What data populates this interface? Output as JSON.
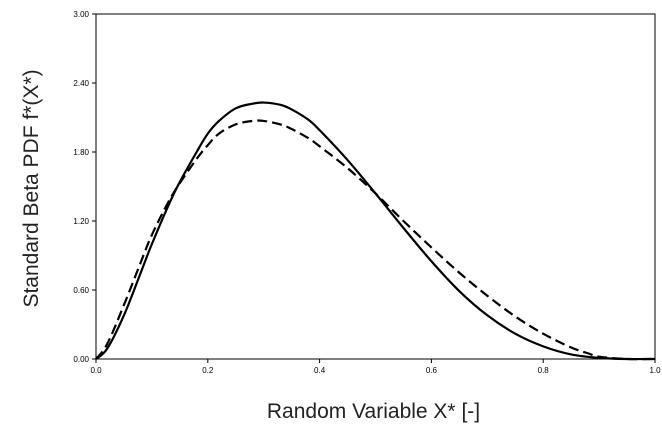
{
  "chart_data": {
    "type": "line",
    "title": "",
    "xlabel": "Random Variable X* [-]",
    "ylabel": "Standard Beta PDF f*(X*)",
    "xlim": [
      0.0,
      1.0
    ],
    "ylim": [
      0.0,
      3.0
    ],
    "x_ticks": [
      "0.0",
      "0.2",
      "0.4",
      "0.6",
      "0.8",
      "1.0"
    ],
    "y_ticks": [
      "0.00",
      "0.60",
      "1.20",
      "1.80",
      "2.40",
      "3.00"
    ],
    "grid": false,
    "legend": "none",
    "series": [
      {
        "style": "solid",
        "color": "#000000",
        "x": [
          0.0,
          0.02,
          0.05,
          0.08,
          0.1,
          0.13,
          0.15,
          0.18,
          0.2,
          0.22,
          0.25,
          0.28,
          0.3,
          0.33,
          0.35,
          0.38,
          0.4,
          0.45,
          0.5,
          0.55,
          0.6,
          0.65,
          0.7,
          0.75,
          0.8,
          0.85,
          0.9,
          0.95,
          1.0
        ],
        "y": [
          0.0,
          0.09,
          0.38,
          0.75,
          1.0,
          1.34,
          1.54,
          1.8,
          1.96,
          2.07,
          2.18,
          2.22,
          2.23,
          2.21,
          2.17,
          2.08,
          1.99,
          1.73,
          1.44,
          1.14,
          0.85,
          0.59,
          0.38,
          0.22,
          0.11,
          0.04,
          0.01,
          0.0,
          0.0
        ]
      },
      {
        "style": "dashed",
        "color": "#000000",
        "x": [
          0.0,
          0.02,
          0.05,
          0.08,
          0.1,
          0.13,
          0.15,
          0.18,
          0.2,
          0.22,
          0.25,
          0.28,
          0.3,
          0.33,
          0.35,
          0.38,
          0.4,
          0.45,
          0.5,
          0.55,
          0.6,
          0.65,
          0.7,
          0.75,
          0.8,
          0.85,
          0.88,
          0.9,
          0.95,
          1.0
        ],
        "y": [
          0.0,
          0.13,
          0.47,
          0.84,
          1.08,
          1.37,
          1.53,
          1.74,
          1.86,
          1.96,
          2.04,
          2.07,
          2.07,
          2.04,
          2.0,
          1.92,
          1.85,
          1.66,
          1.44,
          1.2,
          0.97,
          0.75,
          0.55,
          0.37,
          0.22,
          0.1,
          0.05,
          0.02,
          0.0,
          0.0
        ]
      }
    ]
  }
}
